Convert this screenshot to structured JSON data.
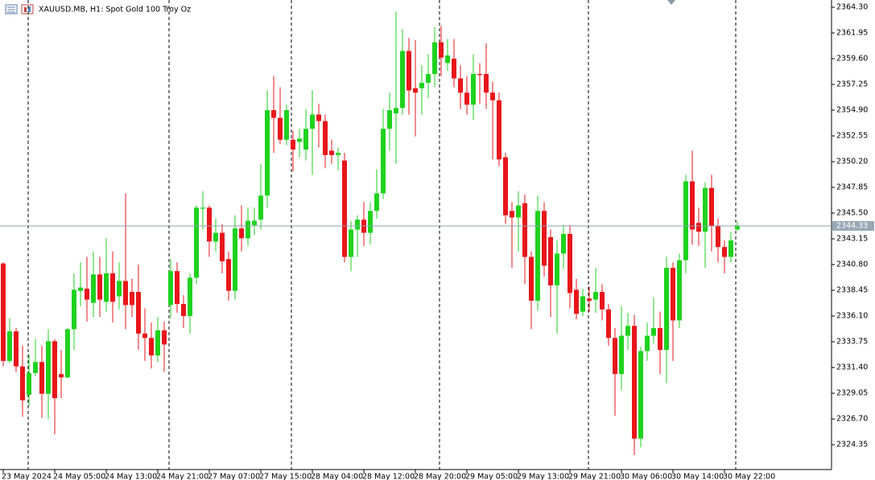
{
  "chart_data": {
    "type": "candlestick",
    "title": "XAUUSD.MB, H1:  Spot Gold 100 Troy Oz",
    "categories": [
      "23 May 2024",
      null,
      null,
      null,
      null,
      null,
      null,
      null,
      "24 May 05:00",
      null,
      null,
      null,
      null,
      null,
      null,
      null,
      "24 May 13:00",
      null,
      null,
      null,
      null,
      null,
      null,
      null,
      "24 May 21:00",
      null,
      null,
      null,
      null,
      null,
      null,
      null,
      "27 May 07:00",
      null,
      null,
      null,
      null,
      null,
      null,
      null,
      "27 May 15:00",
      null,
      null,
      null,
      null,
      null,
      null,
      null,
      "28 May 04:00",
      null,
      null,
      null,
      null,
      null,
      null,
      null,
      "28 May 12:00",
      null,
      null,
      null,
      null,
      null,
      null,
      null,
      "28 May 20:00",
      null,
      null,
      null,
      null,
      null,
      null,
      null,
      "29 May 05:00",
      null,
      null,
      null,
      null,
      null,
      null,
      null,
      "29 May 13:00",
      null,
      null,
      null,
      null,
      null,
      null,
      null,
      "29 May 21:00",
      null,
      null,
      null,
      null,
      null,
      null,
      null,
      "30 May 06:00",
      null,
      null,
      null,
      null,
      null,
      null,
      null,
      "30 May 14:00",
      null,
      null,
      null,
      null,
      null,
      null,
      null,
      "30 May 22:00",
      null,
      null
    ],
    "open": [
      2340.9,
      2332.0,
      2334.7,
      2331.5,
      2328.9,
      2330.9,
      2331.9,
      2329.0,
      2333.8,
      2330.8,
      2330.5,
      2334.9,
      2338.4,
      2338.6,
      2337.3,
      2339.9,
      2337.4,
      2340.0,
      2337.9,
      2339.3,
      2338.3,
      2338.3,
      2334.5,
      2334.1,
      2332.5,
      2334.8,
      2337.1,
      2340.2,
      2337.2,
      2336.1,
      2339.6,
      2345.9,
      2346.0,
      2342.9,
      2343.7,
      2341.3,
      2338.4,
      2344.1,
      2343.2,
      2344.4,
      2344.9,
      2347.1,
      2354.9,
      2354.2,
      2352.2,
      2352.2,
      2352.0,
      2351.3,
      2353.2,
      2354.5,
      2353.9,
      2351.2,
      2350.8,
      2350.3,
      2341.5,
      2344.0,
      2344.9,
      2343.7,
      2345.7,
      2347.3,
      2353.2,
      2354.6,
      2355.1,
      2360.3,
      2356.9,
      2356.9,
      2357.4,
      2358.2,
      2361.1,
      2359.2,
      2359.6,
      2357.8,
      2356.5,
      2355.4,
      2358.2,
      2358.2,
      2356.5,
      2355.8,
      2350.6,
      2345.7,
      2345.1,
      2346.4,
      2341.5,
      2337.5,
      2345.7,
      2343.3,
      2338.9,
      2341.8,
      2343.6,
      2338.5,
      2336.5,
      2337.7,
      2337.6,
      2338.3,
      2336.7,
      2334.1,
      2330.8,
      2334.3,
      2335.2,
      2324.9,
      2332.9,
      2334.3,
      2335.0,
      2333.0,
      2340.5,
      2335.7,
      2341.2,
      2348.4,
      2344.6,
      2343.8,
      2347.8,
      2344.3,
      2342.4,
      2341.5,
      2344.0
    ],
    "high": [
      2341.0,
      2335.9,
      2335.0,
      2333.4,
      2332.6,
      2334.0,
      2333.4,
      2334.9,
      2334.0,
      2333.0,
      2335.0,
      2340.0,
      2341.0,
      2341.5,
      2342.0,
      2341.5,
      2343.2,
      2342.0,
      2341.0,
      2347.3,
      2339.5,
      2340.8,
      2336.8,
      2335.5,
      2336.0,
      2335.6,
      2341.3,
      2341.0,
      2338.0,
      2340.0,
      2346.2,
      2347.5,
      2346.2,
      2345.0,
      2344.5,
      2342.0,
      2345.3,
      2346.2,
      2346.0,
      2346.0,
      2350.0,
      2356.7,
      2358.0,
      2357.0,
      2355.4,
      2353.0,
      2353.2,
      2355.0,
      2356.7,
      2355.5,
      2354.5,
      2352.2,
      2351.5,
      2351.0,
      2344.8,
      2345.3,
      2346.5,
      2346.5,
      2349.5,
      2355.0,
      2356.5,
      2363.9,
      2362.3,
      2361.5,
      2361.3,
      2359.0,
      2360.0,
      2362.5,
      2362.6,
      2361.4,
      2361.4,
      2359.0,
      2358.0,
      2360.0,
      2359.2,
      2361.0,
      2357.5,
      2356.5,
      2351.0,
      2346.5,
      2347.5,
      2347.2,
      2342.0,
      2347.1,
      2346.5,
      2344.0,
      2343.0,
      2344.4,
      2344.4,
      2339.5,
      2338.6,
      2338.8,
      2340.5,
      2339.0,
      2337.2,
      2335.0,
      2337.0,
      2336.4,
      2336.2,
      2333.3,
      2335.5,
      2337.8,
      2336.5,
      2341.5,
      2341.0,
      2341.8,
      2349.0,
      2351.2,
      2346.0,
      2348.3,
      2349.0,
      2345.0,
      2343.0,
      2343.8,
      2344.7
    ],
    "low": [
      2331.5,
      2331.8,
      2331.0,
      2326.9,
      2327.9,
      2330.6,
      2326.8,
      2326.7,
      2325.3,
      2328.6,
      2330.4,
      2333.0,
      2337.0,
      2335.6,
      2336.0,
      2336.0,
      2336.5,
      2335.5,
      2336.7,
      2334.9,
      2336.0,
      2333.0,
      2332.0,
      2331.3,
      2331.9,
      2331.0,
      2335.9,
      2336.4,
      2335.0,
      2334.5,
      2339.0,
      2344.0,
      2341.5,
      2342.0,
      2340.0,
      2337.5,
      2337.6,
      2342.0,
      2342.5,
      2343.5,
      2344.0,
      2346.0,
      2351.0,
      2351.8,
      2351.7,
      2349.3,
      2350.6,
      2350.3,
      2349.0,
      2351.5,
      2349.6,
      2350.0,
      2349.4,
      2341.0,
      2340.2,
      2341.5,
      2342.5,
      2342.6,
      2345.0,
      2346.8,
      2351.2,
      2350.0,
      2354.5,
      2354.5,
      2352.5,
      2354.5,
      2356.0,
      2357.0,
      2358.0,
      2358.5,
      2357.0,
      2355.0,
      2354.5,
      2354.0,
      2355.5,
      2355.0,
      2350.4,
      2349.8,
      2344.5,
      2340.5,
      2342.0,
      2339.0,
      2334.9,
      2336.6,
      2339.7,
      2336.0,
      2334.5,
      2340.4,
      2336.8,
      2335.8,
      2336.1,
      2336.5,
      2336.4,
      2335.7,
      2333.4,
      2327.0,
      2329.3,
      2333.0,
      2323.4,
      2324.1,
      2332.0,
      2333.6,
      2330.8,
      2330.0,
      2332.0,
      2335.0,
      2340.0,
      2342.6,
      2342.5,
      2340.5,
      2342.0,
      2341.0,
      2340.0,
      2341.0,
      2343.9
    ],
    "close": [
      2332.0,
      2334.7,
      2331.5,
      2328.4,
      2330.9,
      2331.9,
      2329.0,
      2333.8,
      2328.6,
      2330.5,
      2334.9,
      2338.5,
      2338.7,
      2337.6,
      2339.9,
      2337.6,
      2340.0,
      2337.4,
      2339.3,
      2337.1,
      2337.1,
      2334.5,
      2334.1,
      2332.5,
      2334.8,
      2333.5,
      2340.2,
      2337.2,
      2336.1,
      2339.6,
      2346.0,
      2346.0,
      2342.9,
      2343.7,
      2341.1,
      2338.4,
      2344.1,
      2343.2,
      2344.8,
      2344.8,
      2347.1,
      2354.9,
      2354.2,
      2352.2,
      2354.9,
      2351.3,
      2352.3,
      2353.2,
      2354.5,
      2353.9,
      2350.8,
      2350.8,
      2351.0,
      2341.5,
      2344.0,
      2344.9,
      2343.7,
      2345.7,
      2347.3,
      2353.2,
      2354.9,
      2355.1,
      2360.3,
      2356.7,
      2356.5,
      2357.4,
      2358.2,
      2361.1,
      2359.7,
      2359.9,
      2357.8,
      2356.5,
      2355.4,
      2358.2,
      2358.1,
      2356.5,
      2355.8,
      2350.4,
      2345.3,
      2345.1,
      2346.2,
      2341.5,
      2337.5,
      2345.7,
      2340.7,
      2338.9,
      2341.8,
      2343.6,
      2338.2,
      2336.3,
      2337.9,
      2337.5,
      2338.3,
      2336.7,
      2334.1,
      2330.8,
      2334.3,
      2335.2,
      2324.9,
      2332.9,
      2334.3,
      2335.0,
      2333.0,
      2340.5,
      2335.7,
      2341.2,
      2348.4,
      2344.0,
      2343.8,
      2347.8,
      2344.3,
      2342.4,
      2341.5,
      2343.0,
      2344.33
    ],
    "up_color": "#1fd21f",
    "down_color": "#e8161b",
    "ylim": [
      2322.08,
      2364.96
    ],
    "yticks": [
      {
        "value": 2364.3,
        "label": "2364.30"
      },
      2361.95,
      {
        "value": 2359.6,
        "label": "2359.60"
      },
      2357.25,
      {
        "value": 2354.9,
        "label": "2354.90"
      },
      2352.55,
      {
        "value": 2350.2,
        "label": "2350.20"
      },
      2347.85,
      {
        "value": 2345.5,
        "label": "2345.50"
      },
      2343.15,
      {
        "value": 2340.8,
        "label": "2340.80"
      },
      2338.45,
      {
        "value": 2336.1,
        "label": "2336.10"
      },
      2333.75,
      {
        "value": 2331.4,
        "label": "2331.40"
      },
      2329.05,
      {
        "value": 2326.7,
        "label": "2326.70"
      },
      2324.35
    ],
    "last_price": 2344.33,
    "grid": false
  }
}
